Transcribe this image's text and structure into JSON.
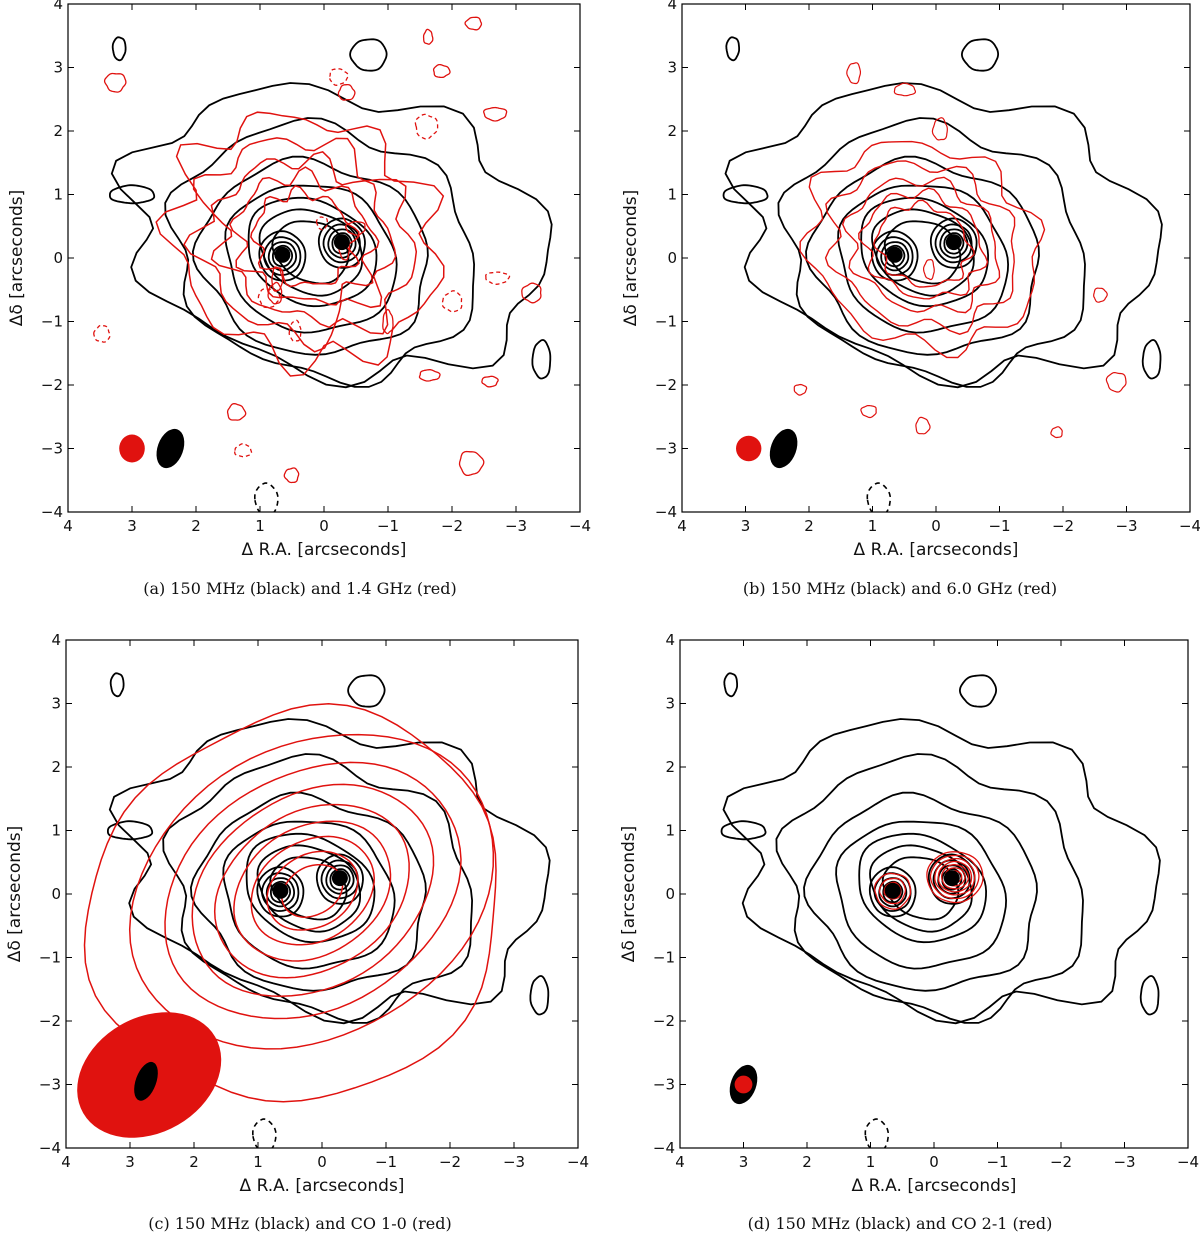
{
  "chart_data": [
    {
      "panel": "a",
      "type": "contour",
      "caption": "(a)  150 MHz (black) and 1.4 GHz (red)",
      "xlabel": "Δ R.A. [arcseconds]",
      "ylabel": "Δδ [arcseconds]",
      "xlim": [
        4,
        -4
      ],
      "ylim": [
        -4,
        4
      ],
      "xticks": [
        4,
        3,
        2,
        1,
        0,
        -1,
        -2,
        -3,
        -4
      ],
      "yticks": [
        4,
        3,
        2,
        1,
        0,
        -1,
        -2,
        -3,
        -4
      ],
      "xtick_labels": [
        "4",
        "3",
        "2",
        "1",
        "0",
        "−1",
        "−2",
        "−3",
        "−4"
      ],
      "ytick_labels": [
        "4",
        "3",
        "2",
        "1",
        "0",
        "−1",
        "−2",
        "−3",
        "−4"
      ],
      "series": [
        {
          "color": "#000000"
        },
        {
          "color": "#e0120f"
        }
      ],
      "nuclei": [
        {
          "x": 0.65,
          "y": 0.05
        },
        {
          "x": -0.28,
          "y": 0.25
        }
      ],
      "beams": [
        {
          "series": "red",
          "x": 3.0,
          "y": -3.0,
          "a": 0.2,
          "b": 0.22,
          "angle": 0
        },
        {
          "series": "black",
          "x": 2.4,
          "y": -3.0,
          "a": 0.2,
          "b": 0.32,
          "angle": 20
        }
      ]
    },
    {
      "panel": "b",
      "type": "contour",
      "caption": "(b)  150 MHz (black) and 6.0 GHz (red)",
      "xlabel": "Δ R.A. [arcseconds]",
      "ylabel": "Δδ [arcseconds]",
      "xlim": [
        4,
        -4
      ],
      "ylim": [
        -4,
        4
      ],
      "xticks": [
        4,
        3,
        2,
        1,
        0,
        -1,
        -2,
        -3,
        -4
      ],
      "yticks": [
        4,
        3,
        2,
        1,
        0,
        -1,
        -2,
        -3,
        -4
      ],
      "xtick_labels": [
        "4",
        "3",
        "2",
        "1",
        "0",
        "−1",
        "−2",
        "−3",
        "−4"
      ],
      "ytick_labels": [
        "4",
        "3",
        "2",
        "1",
        "0",
        "−1",
        "−2",
        "−3",
        "−4"
      ],
      "series": [
        {
          "color": "#000000"
        },
        {
          "color": "#e0120f"
        }
      ],
      "nuclei": [
        {
          "x": 0.65,
          "y": 0.05
        },
        {
          "x": -0.28,
          "y": 0.25
        }
      ],
      "beams": [
        {
          "series": "red",
          "x": 2.95,
          "y": -3.0,
          "a": 0.2,
          "b": 0.2,
          "angle": 0
        },
        {
          "series": "black",
          "x": 2.4,
          "y": -3.0,
          "a": 0.2,
          "b": 0.32,
          "angle": 20
        }
      ]
    },
    {
      "panel": "c",
      "type": "contour",
      "caption": "(c)  150 MHz (black) and CO 1-0 (red)",
      "xlabel": "Δ R.A. [arcseconds]",
      "ylabel": "Δδ [arcseconds]",
      "xlim": [
        4,
        -4
      ],
      "ylim": [
        -4,
        4
      ],
      "xticks": [
        4,
        3,
        2,
        1,
        0,
        -1,
        -2,
        -3,
        -4
      ],
      "yticks": [
        4,
        3,
        2,
        1,
        0,
        -1,
        -2,
        -3,
        -4
      ],
      "xtick_labels": [
        "4",
        "3",
        "2",
        "1",
        "0",
        "−1",
        "−2",
        "−3",
        "−4"
      ],
      "ytick_labels": [
        "4",
        "3",
        "2",
        "1",
        "0",
        "−1",
        "−2",
        "−3",
        "−4"
      ],
      "series": [
        {
          "color": "#000000"
        },
        {
          "color": "#e0120f"
        }
      ],
      "nuclei": [
        {
          "x": 0.65,
          "y": 0.05
        },
        {
          "x": -0.28,
          "y": 0.25
        }
      ],
      "beams": [
        {
          "series": "red",
          "x": 2.7,
          "y": -2.85,
          "a": 0.9,
          "b": 1.2,
          "angle": 60
        },
        {
          "series": "black",
          "x": 2.75,
          "y": -2.95,
          "a": 0.16,
          "b": 0.32,
          "angle": 20
        }
      ]
    },
    {
      "panel": "d",
      "type": "contour",
      "caption": "(d)  150 MHz (black) and CO 2-1 (red)",
      "xlabel": "Δ R.A. [arcseconds]",
      "ylabel": "Δδ [arcseconds]",
      "xlim": [
        4,
        -4
      ],
      "ylim": [
        -4,
        4
      ],
      "xticks": [
        4,
        3,
        2,
        1,
        0,
        -1,
        -2,
        -3,
        -4
      ],
      "yticks": [
        4,
        3,
        2,
        1,
        0,
        -1,
        -2,
        -3,
        -4
      ],
      "xtick_labels": [
        "4",
        "3",
        "2",
        "1",
        "0",
        "−1",
        "−2",
        "−3",
        "−4"
      ],
      "ytick_labels": [
        "4",
        "3",
        "2",
        "1",
        "0",
        "−1",
        "−2",
        "−3",
        "−4"
      ],
      "series": [
        {
          "color": "#000000"
        },
        {
          "color": "#e0120f"
        }
      ],
      "nuclei": [
        {
          "x": 0.65,
          "y": 0.05
        },
        {
          "x": -0.28,
          "y": 0.25
        }
      ],
      "beams": [
        {
          "series": "black",
          "x": 3.0,
          "y": -3.0,
          "a": 0.2,
          "b": 0.32,
          "angle": 20
        },
        {
          "series": "red",
          "x": 3.0,
          "y": -3.0,
          "a": 0.14,
          "b": 0.14,
          "angle": 0
        }
      ]
    }
  ]
}
